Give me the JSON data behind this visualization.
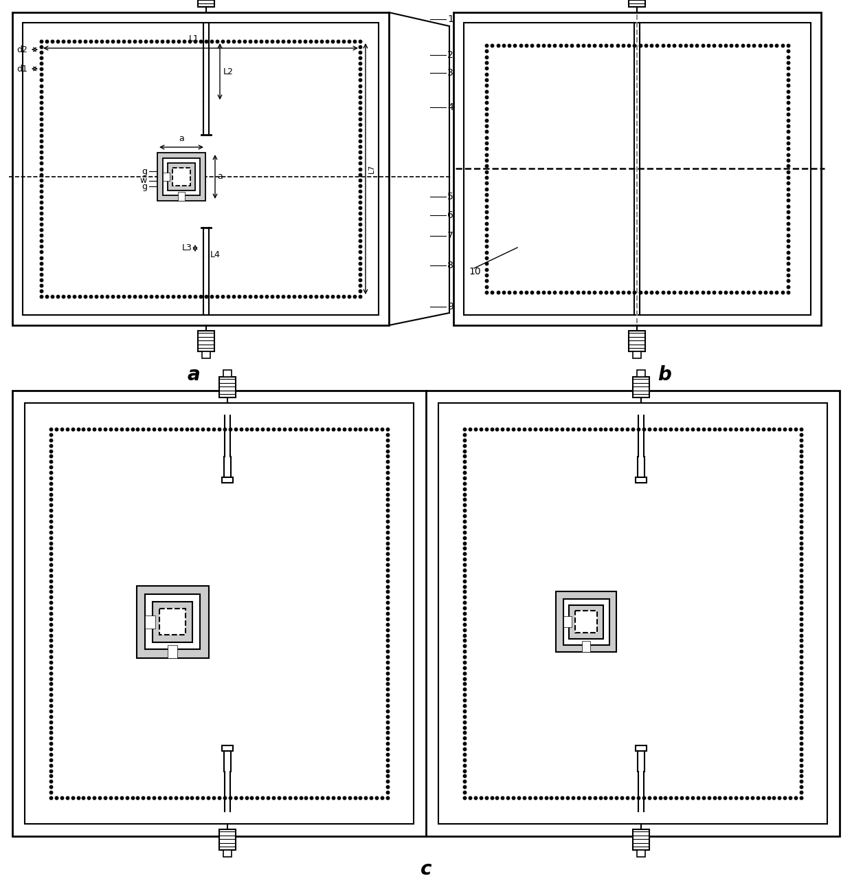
{
  "bg_color": "#ffffff",
  "line_color": "#000000",
  "dot_color": "#000000",
  "label_a": "a",
  "label_b": "b",
  "label_c": "c"
}
